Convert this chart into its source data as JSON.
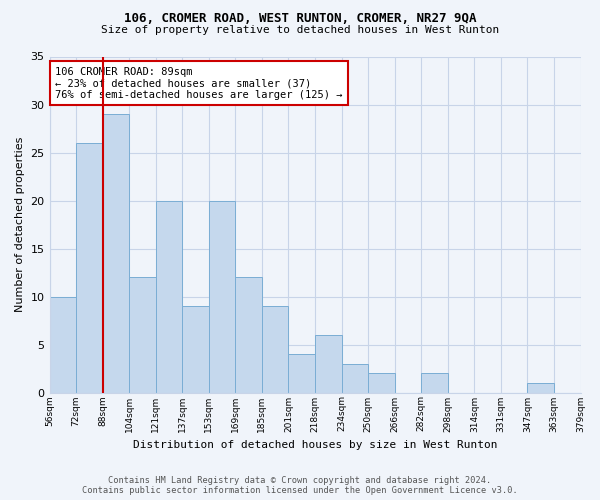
{
  "title": "106, CROMER ROAD, WEST RUNTON, CROMER, NR27 9QA",
  "subtitle": "Size of property relative to detached houses in West Runton",
  "xlabel": "Distribution of detached houses by size in West Runton",
  "ylabel": "Number of detached properties",
  "bar_values": [
    10,
    26,
    29,
    12,
    20,
    9,
    20,
    12,
    9,
    4,
    6,
    3,
    2,
    0,
    2,
    0,
    0,
    0,
    1,
    0
  ],
  "x_labels": [
    "56sqm",
    "72sqm",
    "88sqm",
    "104sqm",
    "121sqm",
    "137sqm",
    "153sqm",
    "169sqm",
    "185sqm",
    "201sqm",
    "218sqm",
    "234sqm",
    "250sqm",
    "266sqm",
    "282sqm",
    "298sqm",
    "314sqm",
    "331sqm",
    "347sqm",
    "363sqm",
    "379sqm"
  ],
  "bar_color": "#c5d8ed",
  "bar_edge_color": "#7aadd4",
  "vline_position": 2,
  "vline_color": "#cc0000",
  "annotation_text": "106 CROMER ROAD: 89sqm\n← 23% of detached houses are smaller (37)\n76% of semi-detached houses are larger (125) →",
  "annotation_box_color": "#ffffff",
  "annotation_border_color": "#cc0000",
  "ylim": [
    0,
    35
  ],
  "yticks": [
    0,
    5,
    10,
    15,
    20,
    25,
    30,
    35
  ],
  "footer_line1": "Contains HM Land Registry data © Crown copyright and database right 2024.",
  "footer_line2": "Contains public sector information licensed under the Open Government Licence v3.0.",
  "background_color": "#f0f4fa",
  "plot_bg_color": "#f0f4fa",
  "grid_color": "#c8d4e8"
}
